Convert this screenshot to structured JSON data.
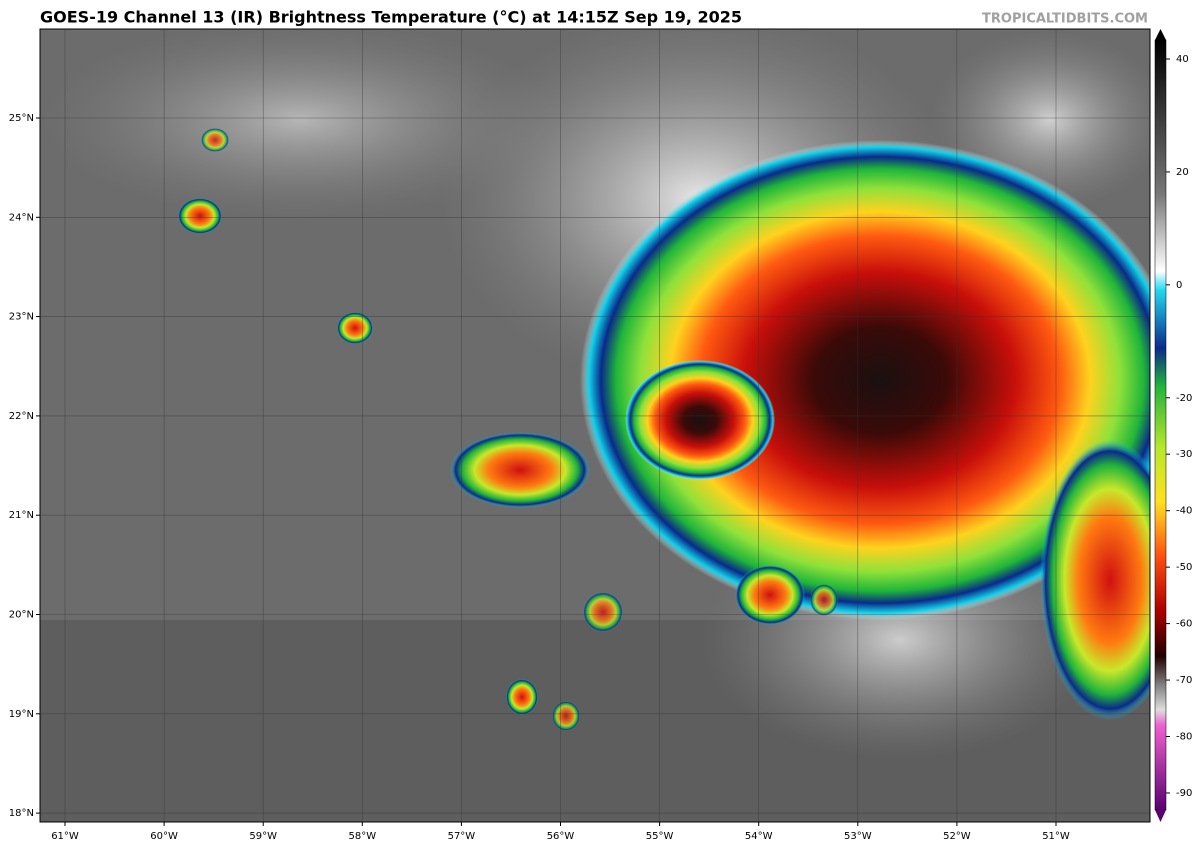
{
  "header": {
    "title": "GOES-19 Channel 13 (IR) Brightness Temperature (°C) at 14:15Z Sep 19, 2025",
    "source": "TROPICALTIDBITS.COM"
  },
  "axes": {
    "lat_labels": [
      "25°N",
      "24°N",
      "23°N",
      "22°N",
      "21°N",
      "20°N",
      "19°N",
      "18°N"
    ],
    "lon_labels": [
      "61°W",
      "60°W",
      "59°W",
      "58°W",
      "57°W",
      "56°W",
      "55°W",
      "54°W",
      "53°W",
      "52°W",
      "51°W"
    ]
  },
  "colorbar": {
    "ticks": [
      40,
      20,
      0,
      -20,
      -30,
      -40,
      -50,
      -60,
      -70,
      -80,
      -90
    ]
  }
}
